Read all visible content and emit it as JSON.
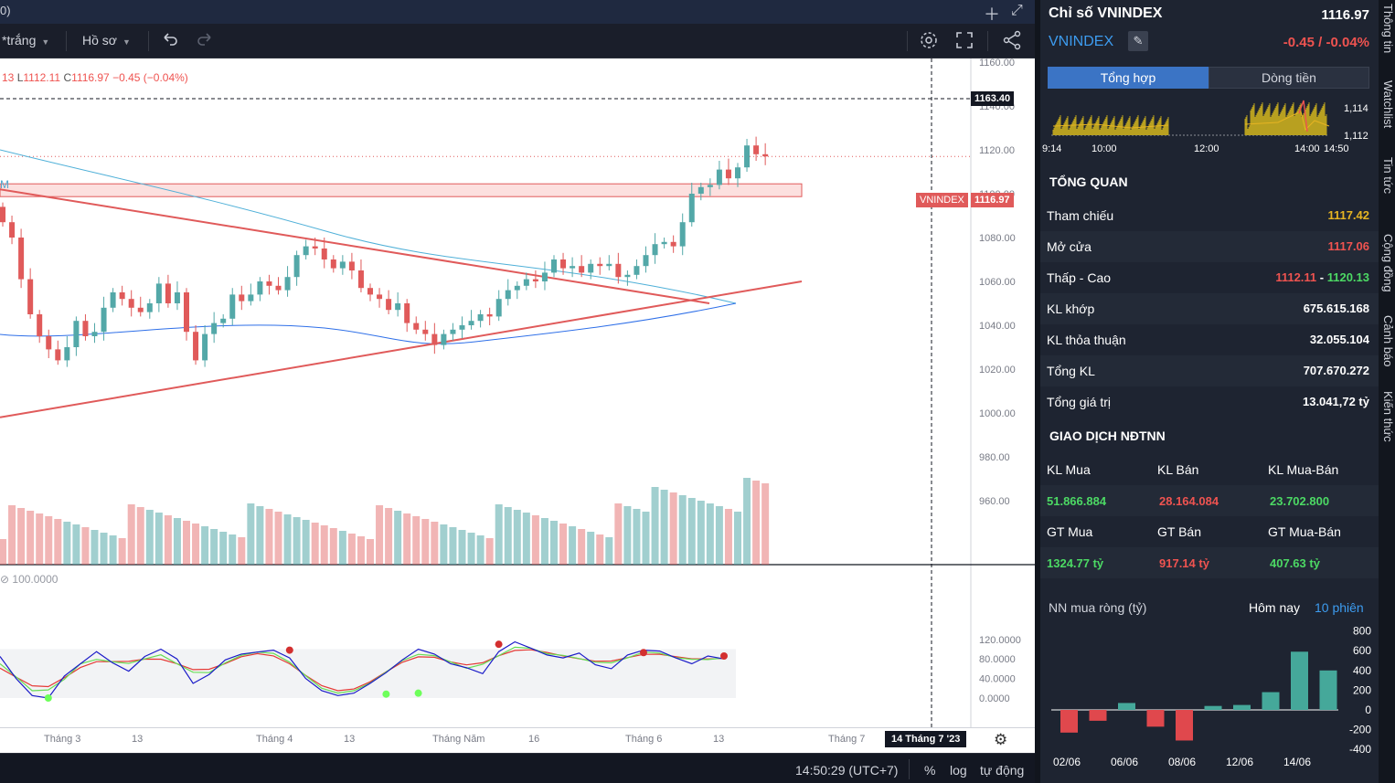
{
  "header": {
    "title_fragment": "0)",
    "plus_icon": "plus-icon",
    "expand_icon": "expand-icon"
  },
  "toolbar": {
    "theme_label": "*trắng",
    "profile_label": "Hồ sơ",
    "undo_icon": "undo-icon",
    "redo_icon": "redo-icon",
    "settings_icon": "gear-icon",
    "fullscreen_icon": "fullscreen-icon",
    "share_icon": "share-icon"
  },
  "ohlc": {
    "open_fragment": "13",
    "low_key": "L",
    "low_value": "1112.11",
    "close_key": "C",
    "close_value": "1116.97",
    "change": "−0.45 (−0.04%)"
  },
  "ma_label": "M",
  "indicator_label": "100.0000",
  "price_axis": {
    "labels": [
      "1160.00",
      "1140.00",
      "1120.00",
      "1100.00",
      "1080.00",
      "1060.00",
      "1040.00",
      "1020.00",
      "1000.00",
      "980.00",
      "960.00"
    ],
    "crosshair_price": "1163.40",
    "symbol_tag": "VNINDEX",
    "last_price": "1116.97"
  },
  "indicator_axis": {
    "labels": [
      "120.0000",
      "80.0000",
      "40.0000",
      "0.0000"
    ]
  },
  "time_axis": {
    "labels": [
      "Tháng 3",
      "13",
      "Tháng 4",
      "13",
      "Tháng Năm",
      "16",
      "Tháng 6",
      "13",
      "Tháng 7"
    ],
    "cursor_label": "14 Tháng 7 '23"
  },
  "bottom_bar": {
    "clock": "14:50:29 (UTC+7)",
    "percent": "%",
    "log": "log",
    "auto": "tự động"
  },
  "panel": {
    "title": "Chỉ số VNINDEX",
    "price": "1116.97",
    "symbol": "VNINDEX",
    "change": "-0.45 / -0.04%",
    "tabs": [
      "Tổng hợp",
      "Dòng tiền"
    ],
    "spark": {
      "y_labels": [
        "1,114",
        "1,112"
      ],
      "x_labels": [
        "9:14",
        "10:00",
        "12:00",
        "14:00",
        "14:50"
      ]
    },
    "overview_title": "TỔNG QUAN",
    "overview": {
      "ref_label": "Tham chiếu",
      "ref_value": "1117.42",
      "open_label": "Mở cửa",
      "open_value": "1117.06",
      "range_label": "Thấp - Cao",
      "low_value": "1112.11",
      "range_sep": " - ",
      "high_value": "1120.13",
      "vol_match_label": "KL khớp",
      "vol_match_value": "675.615.168",
      "vol_deal_label": "KL thỏa thuận",
      "vol_deal_value": "32.055.104",
      "vol_total_label": "Tổng KL",
      "vol_total_value": "707.670.272",
      "value_total_label": "Tổng giá trị",
      "value_total_value": "13.041,72 tỷ"
    },
    "foreign_title": "GIAO DỊCH NĐTNN",
    "foreign": {
      "buy_vol_label": "KL Mua",
      "sell_vol_label": "KL Bán",
      "net_vol_label": "KL Mua-Bán",
      "buy_vol": "51.866.884",
      "sell_vol": "28.164.084",
      "net_vol": "23.702.800",
      "buy_val_label": "GT Mua",
      "sell_val_label": "GT Bán",
      "net_val_label": "GT Mua-Bán",
      "buy_val": "1324.77 tỷ",
      "sell_val": "917.14 tỷ",
      "net_val": "407.63 tỷ"
    },
    "net_buy": {
      "title": "NN mua ròng (tỷ)",
      "tab_today": "Hôm nay",
      "tab_10": "10 phiên",
      "y_labels": [
        "800",
        "600",
        "400",
        "200",
        "0",
        "-200",
        "-400"
      ],
      "x_labels": [
        "02/06",
        "06/06",
        "08/06",
        "12/06",
        "14/06"
      ],
      "values": [
        -230,
        -110,
        70,
        -170,
        -310,
        40,
        50,
        180,
        590,
        400
      ]
    }
  },
  "side_tabs": [
    "Thông tin",
    "Watchlist",
    "Tin tức",
    "Cộng đồng",
    "Cảnh báo",
    "Kiến thức"
  ],
  "colors": {
    "up": "#53a8a8",
    "down": "#e05a5a",
    "accent": "#3d9cf0",
    "ref_yellow": "#e6b422",
    "green": "#4cd964"
  }
}
